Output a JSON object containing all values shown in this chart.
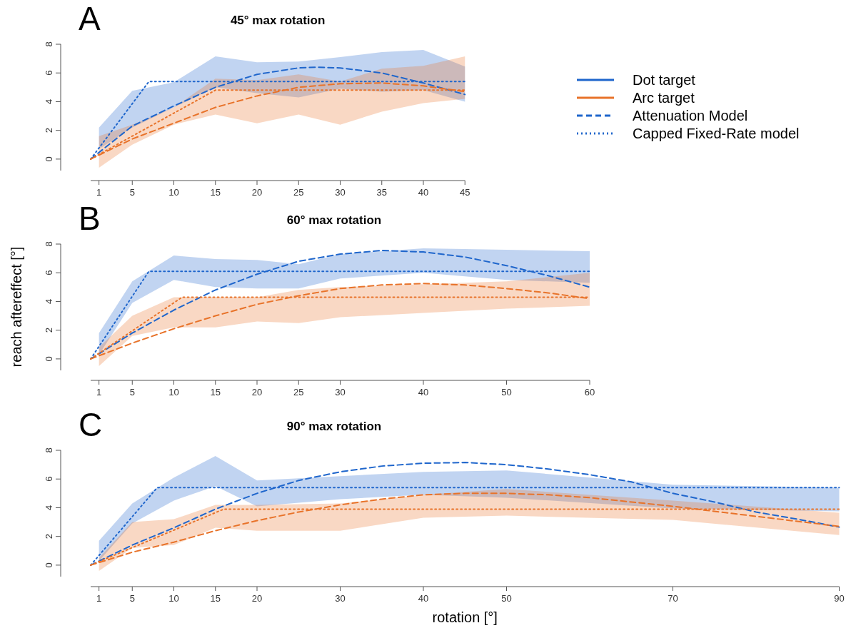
{
  "chart_data": [
    {
      "type": "line",
      "title": "45° max rotation",
      "annotations": [
        "A"
      ],
      "xlim": [
        0,
        45
      ],
      "xticks": [
        1,
        5,
        10,
        15,
        20,
        25,
        30,
        35,
        40,
        45
      ],
      "ylim": [
        -0.8,
        8
      ],
      "yticks": [
        0,
        2,
        4,
        6,
        8
      ],
      "legend": "right",
      "series": [
        {
          "name": "Dot target",
          "color": "#1f66cc",
          "x": [
            1,
            5,
            10,
            15,
            20,
            25,
            30,
            35,
            40,
            45
          ],
          "values": [
            null,
            null,
            null,
            null,
            null,
            null,
            null,
            null,
            null,
            null
          ],
          "lower": [
            0.7,
            2.2,
            3.6,
            5.0,
            4.6,
            4.3,
            4.9,
            4.7,
            4.8,
            4.0
          ],
          "upper": [
            2.2,
            4.75,
            5.35,
            7.15,
            6.75,
            6.8,
            7.1,
            7.45,
            7.6,
            6.45
          ]
        },
        {
          "name": "Arc target",
          "color": "#e8732a",
          "x": [
            1,
            5,
            10,
            15,
            20,
            25,
            30,
            35,
            40,
            45
          ],
          "values": [
            null,
            null,
            null,
            null,
            null,
            null,
            null,
            null,
            null,
            null
          ],
          "lower": [
            -0.6,
            1.0,
            2.4,
            3.1,
            2.5,
            3.1,
            2.4,
            3.3,
            3.9,
            4.2
          ],
          "upper": [
            1.6,
            2.4,
            3.6,
            5.6,
            5.5,
            5.9,
            5.4,
            6.3,
            6.5,
            7.15
          ]
        },
        {
          "name": "Attenuation Model",
          "color": "#1f66cc",
          "line_style": "dashed",
          "x": [
            0,
            5,
            10,
            15,
            20,
            25,
            27,
            30,
            35,
            40,
            45
          ],
          "values": [
            0,
            2.3,
            3.7,
            5.0,
            5.9,
            6.35,
            6.4,
            6.35,
            6.0,
            5.3,
            4.5
          ]
        },
        {
          "name": "Capped Fixed-Rate model",
          "color": "#1f66cc",
          "line_style": "dotted",
          "x": [
            0,
            7,
            45
          ],
          "values": [
            0,
            5.4,
            5.4
          ]
        },
        {
          "color": "#e8732a",
          "line_style": "dashed",
          "x": [
            0,
            5,
            10,
            15,
            20,
            25,
            30,
            35,
            40,
            45
          ],
          "values": [
            0,
            1.4,
            2.5,
            3.6,
            4.4,
            5.0,
            5.25,
            5.3,
            5.1,
            4.7
          ]
        },
        {
          "color": "#e8732a",
          "line_style": "dotted",
          "x": [
            0,
            15,
            45
          ],
          "values": [
            0,
            4.8,
            4.8
          ]
        }
      ]
    },
    {
      "type": "line",
      "title": "60° max rotation",
      "ylabel": "reach aftereffect [°]",
      "annotations": [
        "B"
      ],
      "xlim": [
        0,
        60
      ],
      "xticks": [
        1,
        5,
        10,
        15,
        20,
        25,
        30,
        40,
        50,
        60
      ],
      "ylim": [
        -0.8,
        8
      ],
      "yticks": [
        0,
        2,
        4,
        6,
        8
      ],
      "series": [
        {
          "color": "#1f66cc",
          "x": [
            1,
            5,
            10,
            15,
            20,
            25,
            30,
            40,
            50,
            60
          ],
          "values": [
            null,
            null,
            null,
            null,
            null,
            null,
            null,
            null,
            null,
            null
          ],
          "lower": [
            0.3,
            3.9,
            5.5,
            5.0,
            4.9,
            4.9,
            5.6,
            6.0,
            5.5,
            5.3
          ],
          "upper": [
            1.8,
            5.4,
            7.2,
            6.95,
            6.9,
            6.6,
            7.3,
            7.7,
            7.6,
            7.5
          ]
        },
        {
          "color": "#e8732a",
          "x": [
            1,
            5,
            10,
            15,
            20,
            25,
            30,
            40,
            50,
            60
          ],
          "values": [
            null,
            null,
            null,
            null,
            null,
            null,
            null,
            null,
            null,
            null
          ],
          "lower": [
            -0.5,
            1.6,
            2.2,
            2.2,
            2.6,
            2.5,
            2.9,
            3.2,
            3.5,
            3.7
          ],
          "upper": [
            0.8,
            3.0,
            4.3,
            4.3,
            4.3,
            4.8,
            5.0,
            5.2,
            5.4,
            6.0
          ]
        },
        {
          "color": "#1f66cc",
          "line_style": "dashed",
          "x": [
            0,
            5,
            10,
            15,
            20,
            25,
            30,
            35,
            40,
            45,
            50,
            55,
            60
          ],
          "values": [
            0,
            1.8,
            3.4,
            4.8,
            5.9,
            6.8,
            7.3,
            7.55,
            7.45,
            7.1,
            6.5,
            5.8,
            5.0
          ]
        },
        {
          "color": "#1f66cc",
          "line_style": "dotted",
          "x": [
            0,
            7,
            60
          ],
          "values": [
            0,
            6.1,
            6.1
          ]
        },
        {
          "color": "#e8732a",
          "line_style": "dashed",
          "x": [
            0,
            5,
            10,
            15,
            20,
            25,
            30,
            35,
            40,
            45,
            50,
            55,
            60
          ],
          "values": [
            0,
            1.1,
            2.1,
            3.0,
            3.8,
            4.4,
            4.9,
            5.15,
            5.25,
            5.15,
            4.9,
            4.6,
            4.2
          ]
        },
        {
          "color": "#e8732a",
          "line_style": "dotted",
          "x": [
            0,
            11,
            60
          ],
          "values": [
            0,
            4.3,
            4.3
          ]
        }
      ]
    },
    {
      "type": "line",
      "title": "90° max rotation",
      "xlabel": "rotation [°]",
      "annotations": [
        "C"
      ],
      "xlim": [
        0,
        90
      ],
      "xticks": [
        1,
        5,
        10,
        15,
        20,
        30,
        40,
        50,
        70,
        90
      ],
      "ylim": [
        -0.8,
        8
      ],
      "yticks": [
        0,
        2,
        4,
        6,
        8
      ],
      "series": [
        {
          "color": "#1f66cc",
          "x": [
            1,
            5,
            10,
            15,
            20,
            30,
            40,
            50,
            70,
            90
          ],
          "values": [
            null,
            null,
            null,
            null,
            null,
            null,
            null,
            null,
            null,
            null
          ],
          "lower": [
            0.3,
            2.9,
            4.5,
            5.5,
            4.1,
            4.6,
            4.9,
            4.7,
            3.95,
            3.75
          ],
          "upper": [
            1.7,
            4.3,
            6.1,
            7.6,
            5.9,
            6.2,
            6.5,
            6.6,
            5.6,
            5.4
          ]
        },
        {
          "color": "#e8732a",
          "x": [
            1,
            5,
            10,
            15,
            20,
            30,
            40,
            50,
            70,
            90
          ],
          "values": [
            null,
            null,
            null,
            null,
            null,
            null,
            null,
            null,
            null,
            null
          ],
          "lower": [
            -0.4,
            1.2,
            1.4,
            2.6,
            2.4,
            2.4,
            3.3,
            3.45,
            3.15,
            2.1
          ],
          "upper": [
            0.5,
            3.0,
            3.2,
            4.2,
            4.2,
            4.3,
            4.9,
            5.3,
            4.5,
            3.65
          ]
        },
        {
          "color": "#1f66cc",
          "line_style": "dashed",
          "x": [
            0,
            5,
            10,
            15,
            20,
            25,
            30,
            35,
            40,
            45,
            50,
            55,
            60,
            65,
            70,
            75,
            80,
            85,
            90
          ],
          "values": [
            0,
            1.4,
            2.6,
            3.9,
            5.0,
            5.9,
            6.5,
            6.9,
            7.1,
            7.15,
            7.0,
            6.7,
            6.3,
            5.8,
            5.0,
            4.4,
            3.7,
            3.2,
            2.65
          ]
        },
        {
          "color": "#1f66cc",
          "line_style": "dotted",
          "x": [
            0,
            8,
            90
          ],
          "values": [
            0,
            5.4,
            5.4
          ]
        },
        {
          "color": "#e8732a",
          "line_style": "dashed",
          "x": [
            0,
            5,
            10,
            15,
            20,
            25,
            30,
            35,
            40,
            45,
            50,
            55,
            60,
            70,
            80,
            90
          ],
          "values": [
            0,
            0.9,
            1.6,
            2.4,
            3.1,
            3.7,
            4.2,
            4.6,
            4.9,
            5.0,
            5.0,
            4.9,
            4.7,
            4.1,
            3.4,
            2.7
          ]
        },
        {
          "color": "#e8732a",
          "line_style": "dotted",
          "x": [
            0,
            16,
            90
          ],
          "values": [
            0,
            3.9,
            3.9
          ]
        }
      ]
    }
  ]
}
